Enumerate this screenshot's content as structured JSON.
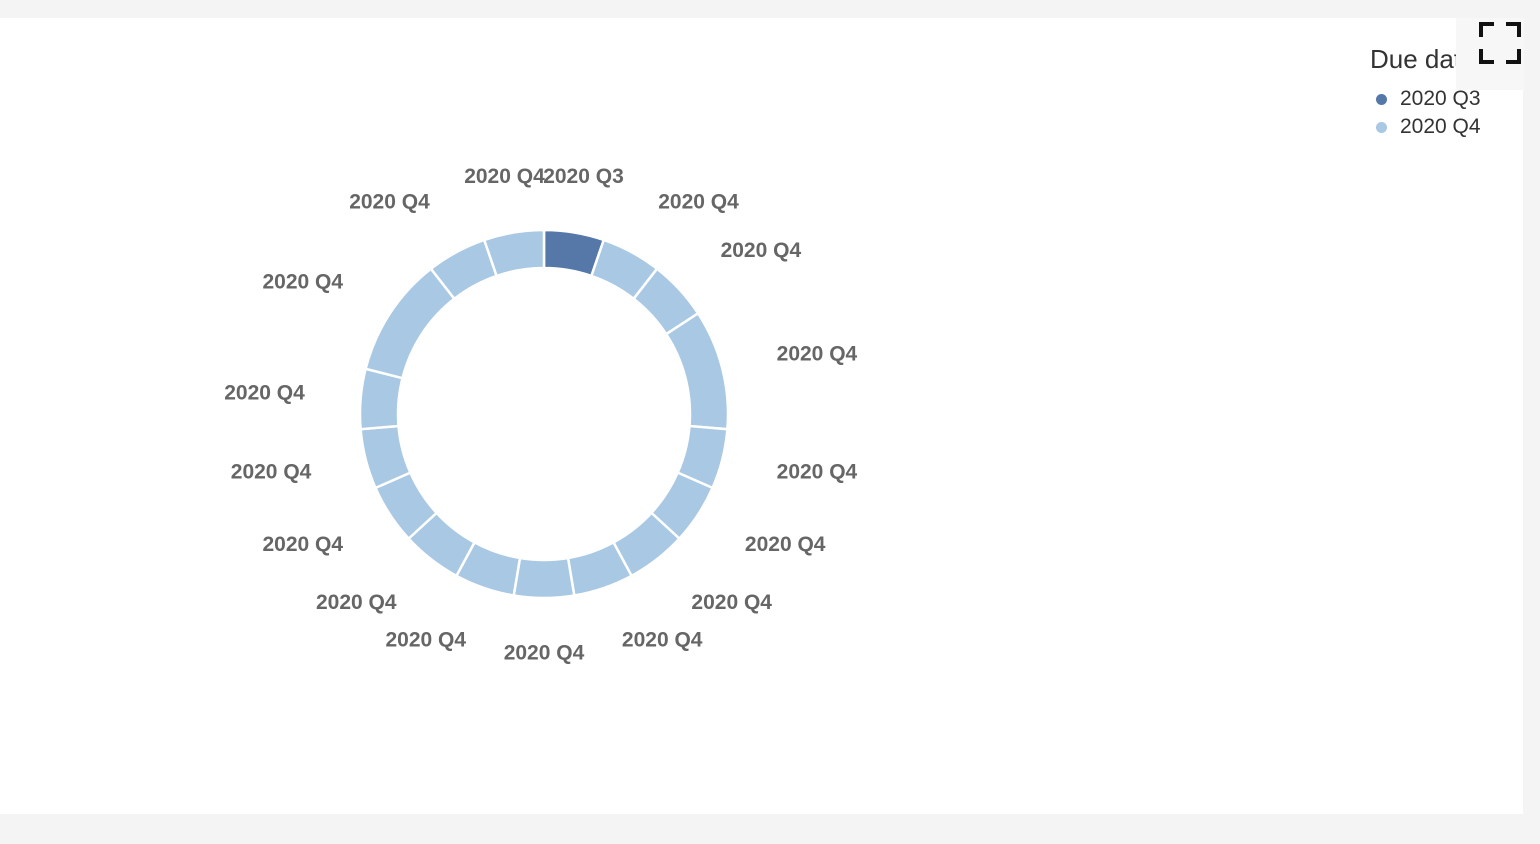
{
  "chart_data": {
    "type": "pie",
    "style": "donut",
    "legend": {
      "title": "Due date",
      "placement": "top-right",
      "entries": [
        {
          "name": "2020 Q3",
          "color": "#5578a8"
        },
        {
          "name": "2020 Q4",
          "color": "#a8c8e4"
        }
      ]
    },
    "slices": [
      {
        "label": "2020 Q3",
        "value": 1
      },
      {
        "label": "2020 Q4",
        "value": 1
      },
      {
        "label": "2020 Q4",
        "value": 1
      },
      {
        "label": "2020 Q4",
        "value": 2
      },
      {
        "label": "2020 Q4",
        "value": 1
      },
      {
        "label": "2020 Q4",
        "value": 1
      },
      {
        "label": "2020 Q4",
        "value": 1
      },
      {
        "label": "2020 Q4",
        "value": 1
      },
      {
        "label": "2020 Q4",
        "value": 1
      },
      {
        "label": "2020 Q4",
        "value": 1
      },
      {
        "label": "2020 Q4",
        "value": 1
      },
      {
        "label": "2020 Q4",
        "value": 1
      },
      {
        "label": "2020 Q4",
        "value": 1
      },
      {
        "label": "2020 Q4",
        "value": 1
      },
      {
        "label": "2020 Q4",
        "value": 2
      },
      {
        "label": "2020 Q4",
        "value": 1
      },
      {
        "label": "2020 Q4",
        "value": 1
      }
    ]
  },
  "toolbar": {
    "fullscreen_icon": "fullscreen-icon"
  }
}
